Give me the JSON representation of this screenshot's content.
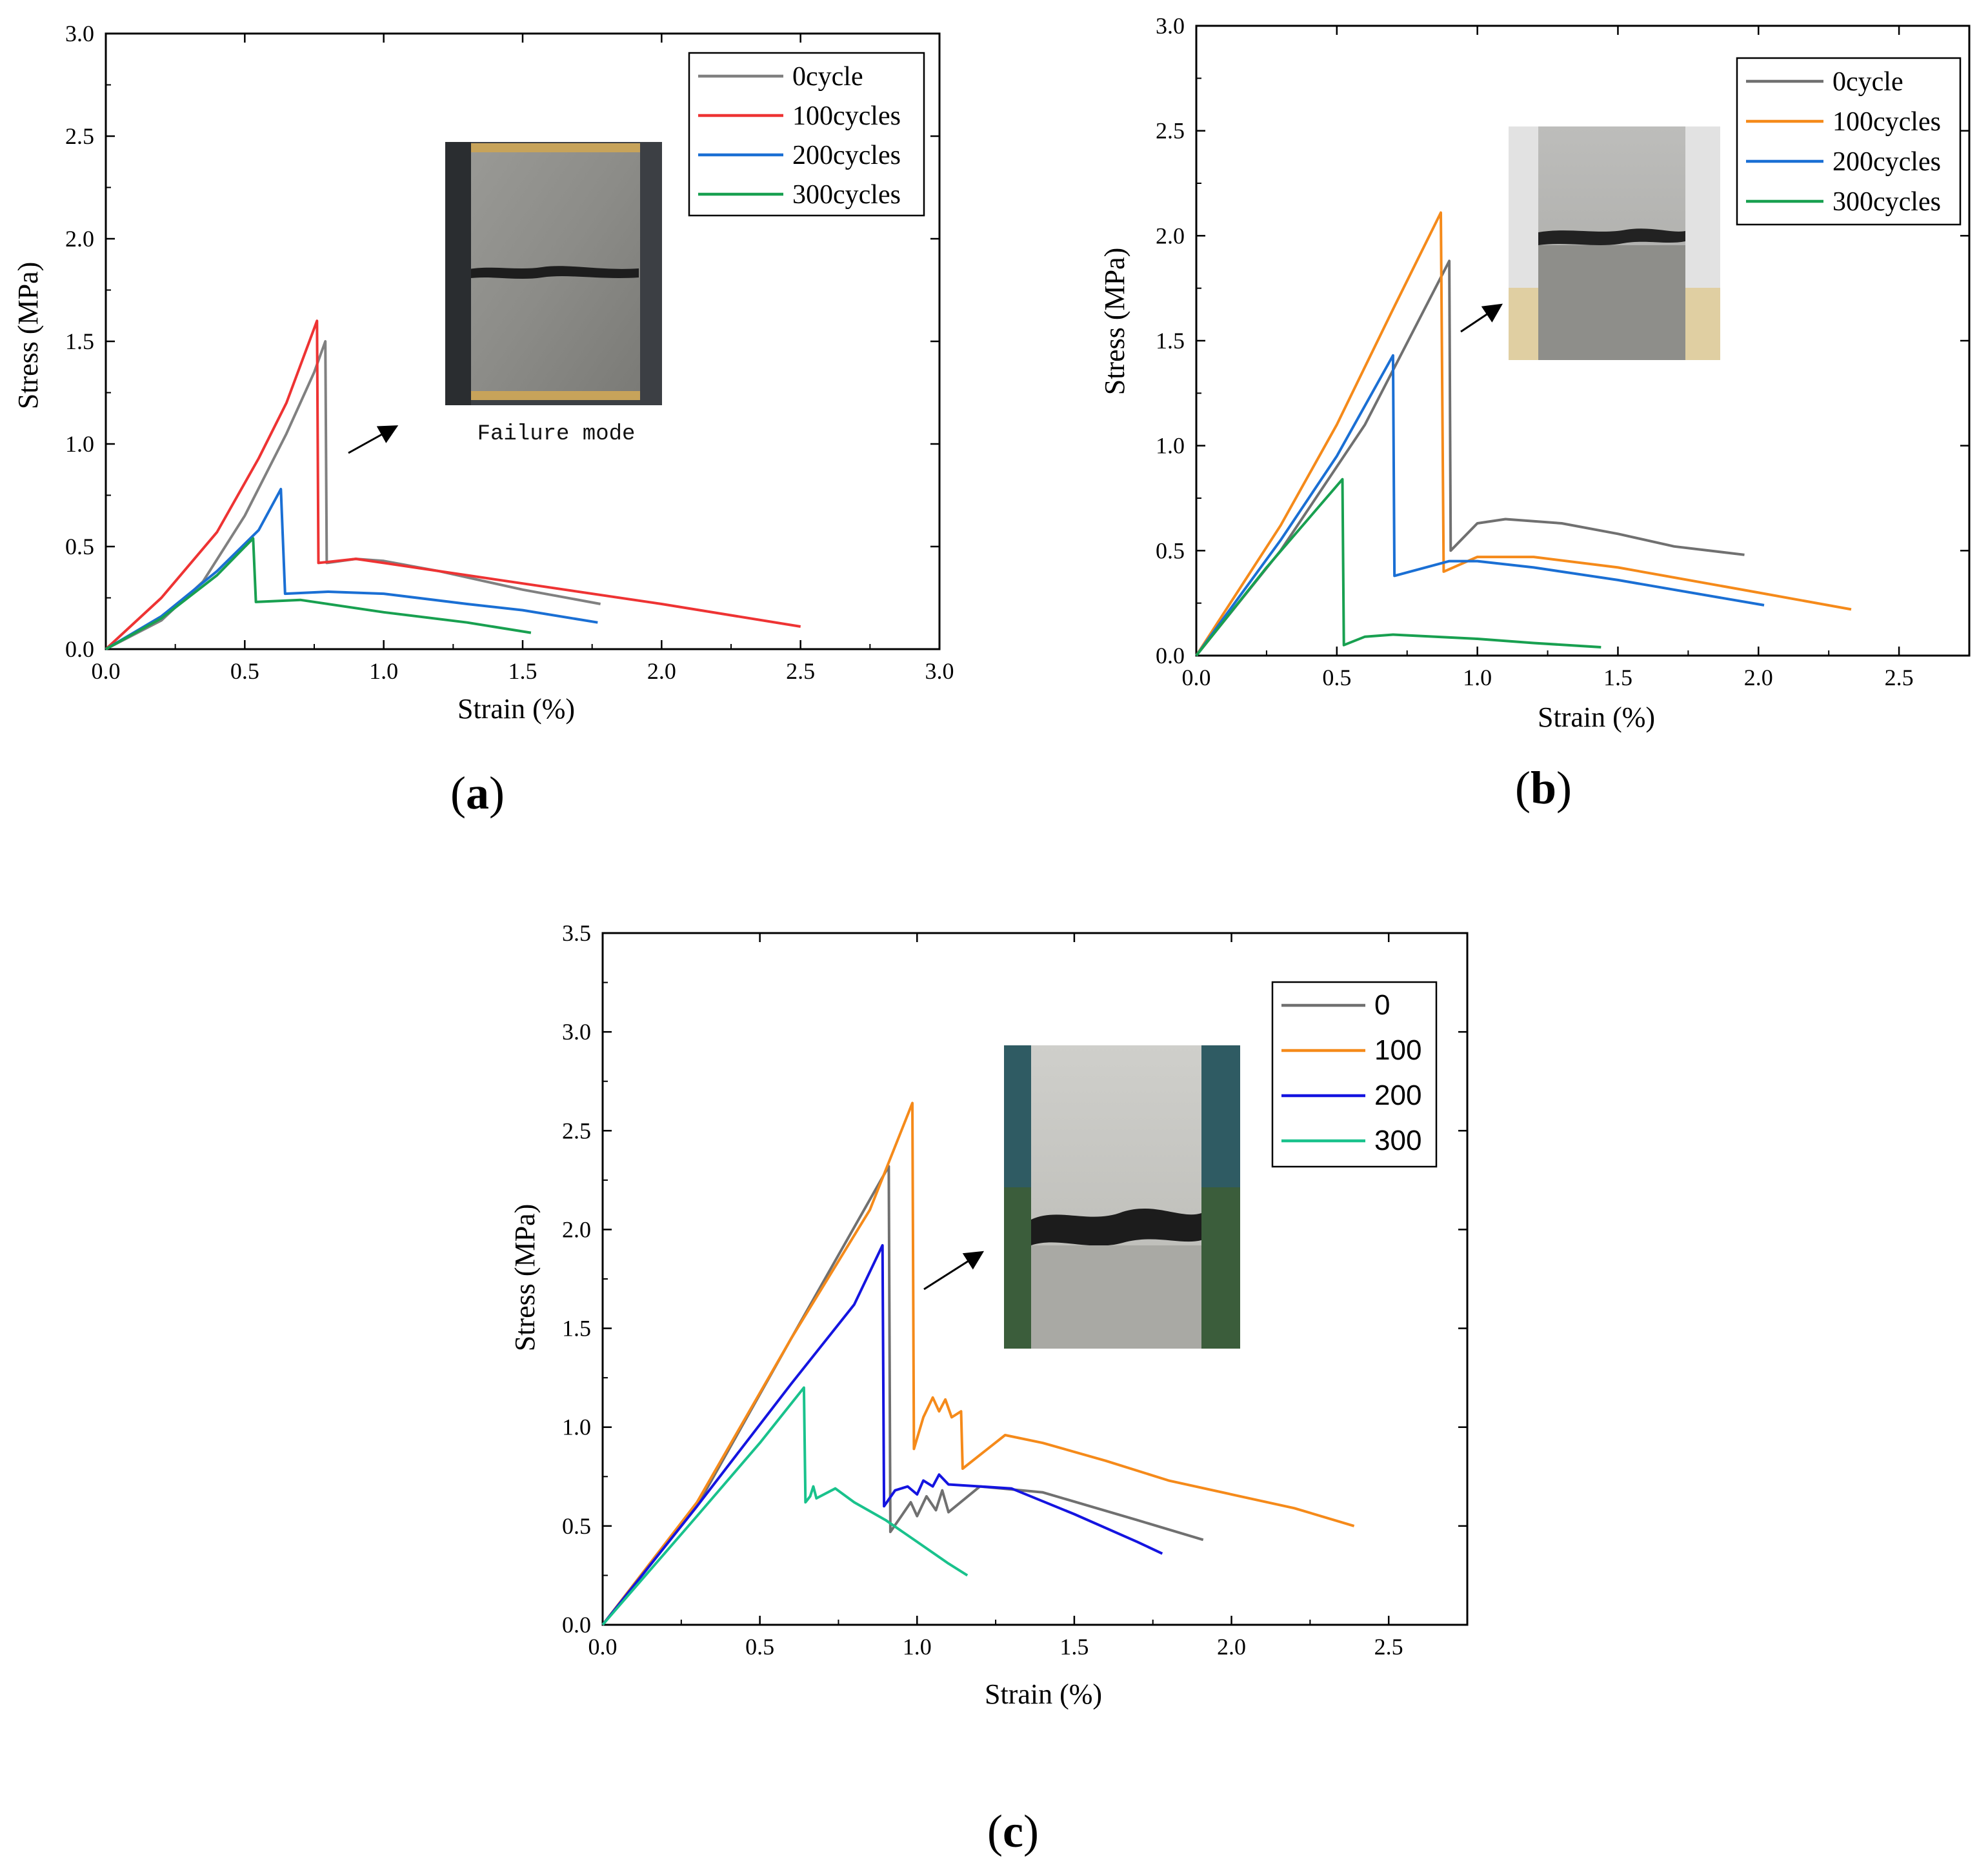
{
  "chart_data": [
    {
      "id": "a",
      "panel_label": "a",
      "type": "line",
      "title": "",
      "xlabel": "Strain (%)",
      "ylabel": "Stress (MPa)",
      "xlim": [
        0,
        3.0
      ],
      "ylim": [
        0,
        3.0
      ],
      "xticks": [
        "0.0",
        "0.5",
        "1.0",
        "1.5",
        "2.0",
        "2.5",
        "3.0"
      ],
      "yticks": [
        "0.0",
        "0.5",
        "1.0",
        "1.5",
        "2.0",
        "2.5",
        "3.0"
      ],
      "legend_position": "top-right",
      "inset_caption": "Failure mode",
      "series": [
        {
          "name": "0cycle",
          "color": "#808080",
          "points": [
            [
              0,
              0
            ],
            [
              0.2,
              0.14
            ],
            [
              0.35,
              0.33
            ],
            [
              0.5,
              0.65
            ],
            [
              0.65,
              1.05
            ],
            [
              0.75,
              1.35
            ],
            [
              0.79,
              1.5
            ],
            [
              0.795,
              0.42
            ],
            [
              0.9,
              0.44
            ],
            [
              1.0,
              0.43
            ],
            [
              1.2,
              0.38
            ],
            [
              1.5,
              0.29
            ],
            [
              1.78,
              0.22
            ]
          ]
        },
        {
          "name": "100cycles",
          "color": "#ee3333",
          "points": [
            [
              0,
              0
            ],
            [
              0.2,
              0.25
            ],
            [
              0.4,
              0.57
            ],
            [
              0.55,
              0.93
            ],
            [
              0.65,
              1.2
            ],
            [
              0.76,
              1.6
            ],
            [
              0.765,
              0.42
            ],
            [
              0.9,
              0.44
            ],
            [
              1.0,
              0.42
            ],
            [
              1.5,
              0.32
            ],
            [
              2.0,
              0.22
            ],
            [
              2.5,
              0.11
            ]
          ]
        },
        {
          "name": "200cycles",
          "color": "#1a6fd4",
          "points": [
            [
              0,
              0
            ],
            [
              0.2,
              0.16
            ],
            [
              0.4,
              0.38
            ],
            [
              0.55,
              0.58
            ],
            [
              0.63,
              0.78
            ],
            [
              0.645,
              0.27
            ],
            [
              0.8,
              0.28
            ],
            [
              1.0,
              0.27
            ],
            [
              1.3,
              0.22
            ],
            [
              1.5,
              0.19
            ],
            [
              1.77,
              0.13
            ]
          ]
        },
        {
          "name": "300cycles",
          "color": "#18a050",
          "points": [
            [
              0,
              0
            ],
            [
              0.2,
              0.15
            ],
            [
              0.4,
              0.36
            ],
            [
              0.53,
              0.54
            ],
            [
              0.54,
              0.23
            ],
            [
              0.7,
              0.24
            ],
            [
              1.0,
              0.18
            ],
            [
              1.3,
              0.13
            ],
            [
              1.53,
              0.08
            ]
          ]
        }
      ]
    },
    {
      "id": "b",
      "panel_label": "b",
      "type": "line",
      "title": "",
      "xlabel": "Strain (%)",
      "ylabel": "Stress (MPa)",
      "xlim": [
        0,
        2.75
      ],
      "ylim": [
        0,
        3.0
      ],
      "xticks": [
        "0.0",
        "0.5",
        "1.0",
        "1.5",
        "2.0",
        "2.5"
      ],
      "yticks": [
        "0.0",
        "0.5",
        "1.0",
        "1.5",
        "2.0",
        "2.5",
        "3.0"
      ],
      "legend_position": "top-right",
      "series": [
        {
          "name": "0cycle",
          "color": "#707070",
          "points": [
            [
              0,
              0
            ],
            [
              0.3,
              0.5
            ],
            [
              0.6,
              1.1
            ],
            [
              0.9,
              1.88
            ],
            [
              0.905,
              0.5
            ],
            [
              1.0,
              0.63
            ],
            [
              1.1,
              0.65
            ],
            [
              1.3,
              0.63
            ],
            [
              1.5,
              0.58
            ],
            [
              1.7,
              0.52
            ],
            [
              1.95,
              0.48
            ]
          ]
        },
        {
          "name": "100cycles",
          "color": "#f58a1a",
          "points": [
            [
              0,
              0
            ],
            [
              0.3,
              0.62
            ],
            [
              0.5,
              1.1
            ],
            [
              0.7,
              1.65
            ],
            [
              0.87,
              2.11
            ],
            [
              0.88,
              0.4
            ],
            [
              1.0,
              0.47
            ],
            [
              1.2,
              0.47
            ],
            [
              1.5,
              0.42
            ],
            [
              2.0,
              0.3
            ],
            [
              2.33,
              0.22
            ]
          ]
        },
        {
          "name": "200cycles",
          "color": "#1a6fd4",
          "points": [
            [
              0,
              0
            ],
            [
              0.3,
              0.55
            ],
            [
              0.5,
              0.95
            ],
            [
              0.7,
              1.43
            ],
            [
              0.705,
              0.38
            ],
            [
              0.9,
              0.45
            ],
            [
              1.0,
              0.45
            ],
            [
              1.2,
              0.42
            ],
            [
              1.5,
              0.36
            ],
            [
              2.02,
              0.24
            ]
          ]
        },
        {
          "name": "300cycles",
          "color": "#18a050",
          "points": [
            [
              0,
              0
            ],
            [
              0.25,
              0.42
            ],
            [
              0.52,
              0.84
            ],
            [
              0.525,
              0.05
            ],
            [
              0.6,
              0.09
            ],
            [
              0.7,
              0.1
            ],
            [
              1.0,
              0.08
            ],
            [
              1.2,
              0.06
            ],
            [
              1.44,
              0.04
            ]
          ]
        }
      ]
    },
    {
      "id": "c",
      "panel_label": "c",
      "type": "line",
      "title": "",
      "xlabel": "Strain (%)",
      "ylabel": "Stress (MPa)",
      "xlim": [
        0,
        2.75
      ],
      "ylim": [
        0,
        3.5
      ],
      "xticks": [
        "0.0",
        "0.5",
        "1.0",
        "1.5",
        "2.0",
        "2.5"
      ],
      "yticks": [
        "0.0",
        "0.5",
        "1.0",
        "1.5",
        "2.0",
        "2.5",
        "3.0",
        "3.5"
      ],
      "legend_position": "top-right",
      "series": [
        {
          "name": "0",
          "color": "#707070",
          "points": [
            [
              0,
              0
            ],
            [
              0.3,
              0.6
            ],
            [
              0.6,
              1.45
            ],
            [
              0.91,
              2.32
            ],
            [
              0.915,
              0.47
            ],
            [
              0.95,
              0.55
            ],
            [
              0.98,
              0.62
            ],
            [
              1.0,
              0.55
            ],
            [
              1.03,
              0.65
            ],
            [
              1.06,
              0.58
            ],
            [
              1.08,
              0.68
            ],
            [
              1.1,
              0.57
            ],
            [
              1.2,
              0.7
            ],
            [
              1.4,
              0.67
            ],
            [
              1.7,
              0.53
            ],
            [
              1.91,
              0.43
            ]
          ]
        },
        {
          "name": "100",
          "color": "#f58a1a",
          "points": [
            [
              0,
              0
            ],
            [
              0.3,
              0.62
            ],
            [
              0.6,
              1.45
            ],
            [
              0.85,
              2.1
            ],
            [
              0.985,
              2.64
            ],
            [
              0.99,
              0.89
            ],
            [
              1.02,
              1.05
            ],
            [
              1.05,
              1.15
            ],
            [
              1.07,
              1.08
            ],
            [
              1.09,
              1.14
            ],
            [
              1.11,
              1.05
            ],
            [
              1.14,
              1.08
            ],
            [
              1.145,
              0.79
            ],
            [
              1.28,
              0.96
            ],
            [
              1.4,
              0.92
            ],
            [
              1.6,
              0.83
            ],
            [
              1.8,
              0.73
            ],
            [
              2.0,
              0.66
            ],
            [
              2.2,
              0.59
            ],
            [
              2.39,
              0.5
            ]
          ]
        },
        {
          "name": "200",
          "color": "#1414e0",
          "points": [
            [
              0,
              0
            ],
            [
              0.3,
              0.6
            ],
            [
              0.6,
              1.22
            ],
            [
              0.8,
              1.62
            ],
            [
              0.89,
              1.92
            ],
            [
              0.895,
              0.6
            ],
            [
              0.93,
              0.68
            ],
            [
              0.97,
              0.7
            ],
            [
              1.0,
              0.66
            ],
            [
              1.02,
              0.73
            ],
            [
              1.05,
              0.7
            ],
            [
              1.07,
              0.76
            ],
            [
              1.1,
              0.71
            ],
            [
              1.3,
              0.69
            ],
            [
              1.5,
              0.56
            ],
            [
              1.7,
              0.42
            ],
            [
              1.78,
              0.36
            ]
          ]
        },
        {
          "name": "300",
          "color": "#19c28c",
          "points": [
            [
              0,
              0
            ],
            [
              0.3,
              0.55
            ],
            [
              0.5,
              0.92
            ],
            [
              0.64,
              1.2
            ],
            [
              0.645,
              0.62
            ],
            [
              0.66,
              0.65
            ],
            [
              0.67,
              0.7
            ],
            [
              0.68,
              0.64
            ],
            [
              0.74,
              0.69
            ],
            [
              0.8,
              0.62
            ],
            [
              0.9,
              0.53
            ],
            [
              1.0,
              0.42
            ],
            [
              1.1,
              0.31
            ],
            [
              1.16,
              0.25
            ]
          ]
        }
      ]
    }
  ]
}
